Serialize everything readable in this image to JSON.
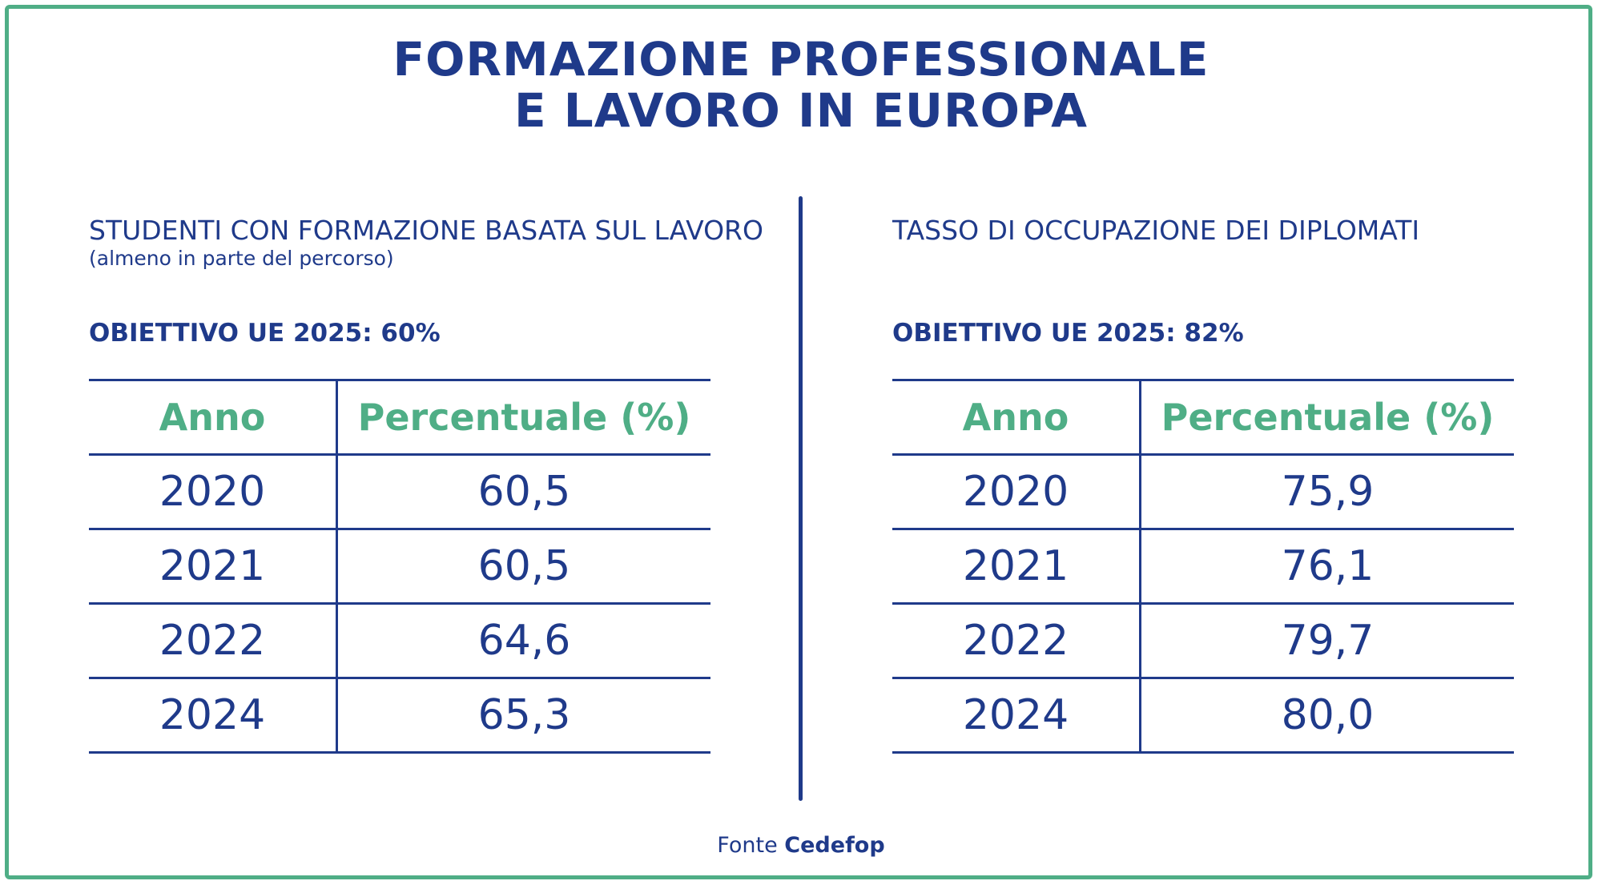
{
  "title": {
    "line1": "FORMAZIONE PROFESSIONALE",
    "line2": "E LAVORO IN EUROPA"
  },
  "source": {
    "prefix": "Fonte",
    "name": "Cedefop"
  },
  "colors": {
    "primary": "#1f3a8a",
    "accent": "#4fae86"
  },
  "chart_data": [
    {
      "type": "table",
      "title": "STUDENTI CON FORMAZIONE BASATA SUL LAVORO",
      "subtitle": "(almeno in parte del percorso)",
      "target": "OBIETTIVO UE 2025: 60%",
      "columns": [
        "Anno",
        "Percentuale (%)"
      ],
      "rows": [
        [
          "2020",
          "60,5"
        ],
        [
          "2021",
          "60,5"
        ],
        [
          "2022",
          "64,6"
        ],
        [
          "2024",
          "65,3"
        ]
      ]
    },
    {
      "type": "table",
      "title": "TASSO DI OCCUPAZIONE DEI DIPLOMATI",
      "subtitle": "",
      "target": "OBIETTIVO UE 2025: 82%",
      "columns": [
        "Anno",
        "Percentuale (%)"
      ],
      "rows": [
        [
          "2020",
          "75,9"
        ],
        [
          "2021",
          "76,1"
        ],
        [
          "2022",
          "79,7"
        ],
        [
          "2024",
          "80,0"
        ]
      ]
    }
  ]
}
